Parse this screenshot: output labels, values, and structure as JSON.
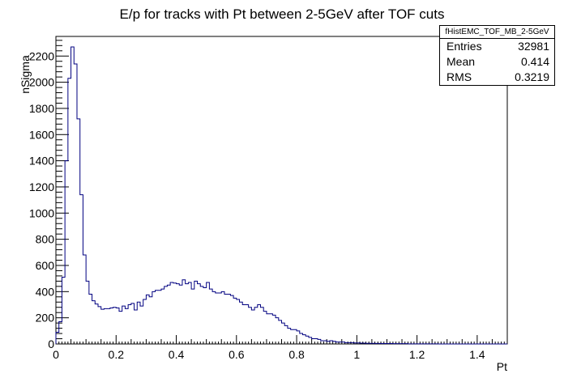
{
  "chart_data": {
    "type": "bar",
    "title": "E/p for tracks with Pt between 2-5GeV after TOF cuts",
    "xlabel": "Pt",
    "ylabel": "nSigma",
    "xlim": [
      0,
      1.5
    ],
    "ylim": [
      0,
      2350
    ],
    "grid": false,
    "bin_width": 0.01,
    "x_ticks": [
      "0",
      "0.2",
      "0.4",
      "0.6",
      "0.8",
      "1",
      "1.2",
      "1.4"
    ],
    "y_ticks": [
      "0",
      "200",
      "400",
      "600",
      "800",
      "1000",
      "1200",
      "1400",
      "1600",
      "1800",
      "2000",
      "2200"
    ],
    "line_color": "#000080",
    "values": [
      90,
      170,
      510,
      1400,
      2030,
      2270,
      2140,
      1720,
      1140,
      680,
      480,
      380,
      330,
      305,
      285,
      265,
      270,
      270,
      275,
      280,
      275,
      250,
      290,
      270,
      300,
      310,
      260,
      320,
      290,
      340,
      375,
      360,
      400,
      410,
      410,
      420,
      440,
      450,
      470,
      465,
      460,
      450,
      490,
      460,
      470,
      420,
      480,
      460,
      440,
      430,
      470,
      420,
      400,
      390,
      390,
      400,
      380,
      380,
      370,
      350,
      340,
      320,
      300,
      300,
      280,
      260,
      280,
      300,
      280,
      250,
      230,
      230,
      220,
      200,
      180,
      160,
      140,
      120,
      110,
      110,
      100,
      80,
      70,
      60,
      50,
      40,
      40,
      35,
      25,
      25,
      20,
      25,
      20,
      15,
      15,
      15,
      10,
      10,
      10,
      8,
      8,
      6,
      6,
      5,
      5,
      5,
      4,
      4,
      3,
      3,
      3,
      3,
      2,
      2,
      2,
      2,
      2,
      1,
      1,
      1,
      1,
      1,
      1,
      1,
      1,
      1,
      1,
      0,
      0,
      0,
      0,
      0,
      0,
      0,
      0,
      0,
      0,
      0,
      0,
      0,
      0,
      0,
      0,
      0,
      0,
      0,
      0,
      0,
      0,
      0
    ]
  },
  "stats": {
    "name": "fHistEMC_TOF_MB_2-5GeV",
    "rows": [
      {
        "label": "Entries",
        "value": "32981"
      },
      {
        "label": "Mean",
        "value": "0.414"
      },
      {
        "label": "RMS",
        "value": "0.3219"
      }
    ]
  }
}
